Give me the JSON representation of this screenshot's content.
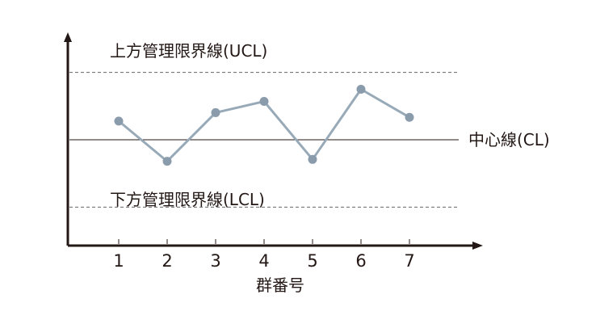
{
  "chart_data": {
    "type": "line",
    "x": [
      "1",
      "2",
      "3",
      "4",
      "5",
      "6",
      "7"
    ],
    "xlabel": "群番号",
    "ylabel": "",
    "series": [
      {
        "values": [
          1.0,
          -1.15,
          1.45,
          2.05,
          -1.05,
          2.7,
          1.2
        ]
      }
    ],
    "ylim": [
      -5.4,
      5.4
    ],
    "control_lines": {
      "ucl": {
        "label": "上方管理限界線(UCL)",
        "value": 3.6
      },
      "cl": {
        "label": "中心線(CL)",
        "value": 0
      },
      "lcl": {
        "label": "下方管理限界線(LCL)",
        "value": -3.6
      }
    },
    "grid": false,
    "colors": {
      "series": "#98aab8",
      "point": "#8a9cab",
      "axis": "#231815",
      "control_line": "#666666"
    }
  }
}
